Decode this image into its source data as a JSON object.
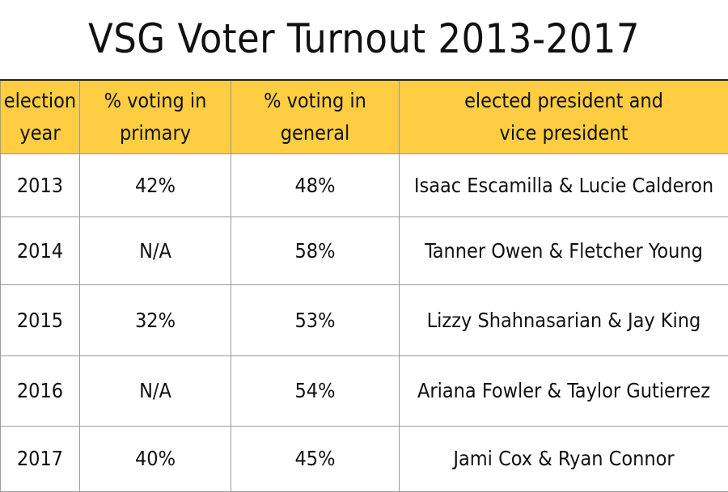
{
  "title": "VSG Voter Turnout 2013-2017",
  "chart_data": {
    "type": "table",
    "title": "VSG Voter Turnout 2013-2017",
    "columns": [
      [
        "election",
        "year"
      ],
      [
        "% voting in",
        "primary"
      ],
      [
        "% voting in",
        "general"
      ],
      [
        "elected president and",
        "vice president"
      ]
    ],
    "rows": [
      [
        "2013",
        "42%",
        "48%",
        "Isaac Escamilla & Lucie Calderon"
      ],
      [
        "2014",
        "N/A",
        "58%",
        "Tanner Owen & Fletcher Young"
      ],
      [
        "2015",
        "32%",
        "53%",
        "Lizzy Shahnasarian & Jay King"
      ],
      [
        "2016",
        "N/A",
        "54%",
        "Ariana Fowler & Taylor Gutierrez"
      ],
      [
        "2017",
        "40%",
        "45%",
        "Jami Cox & Ryan Connor"
      ]
    ],
    "colors": {
      "header_background": "#fecd41",
      "grid_lines": "#9a9a9a"
    }
  }
}
